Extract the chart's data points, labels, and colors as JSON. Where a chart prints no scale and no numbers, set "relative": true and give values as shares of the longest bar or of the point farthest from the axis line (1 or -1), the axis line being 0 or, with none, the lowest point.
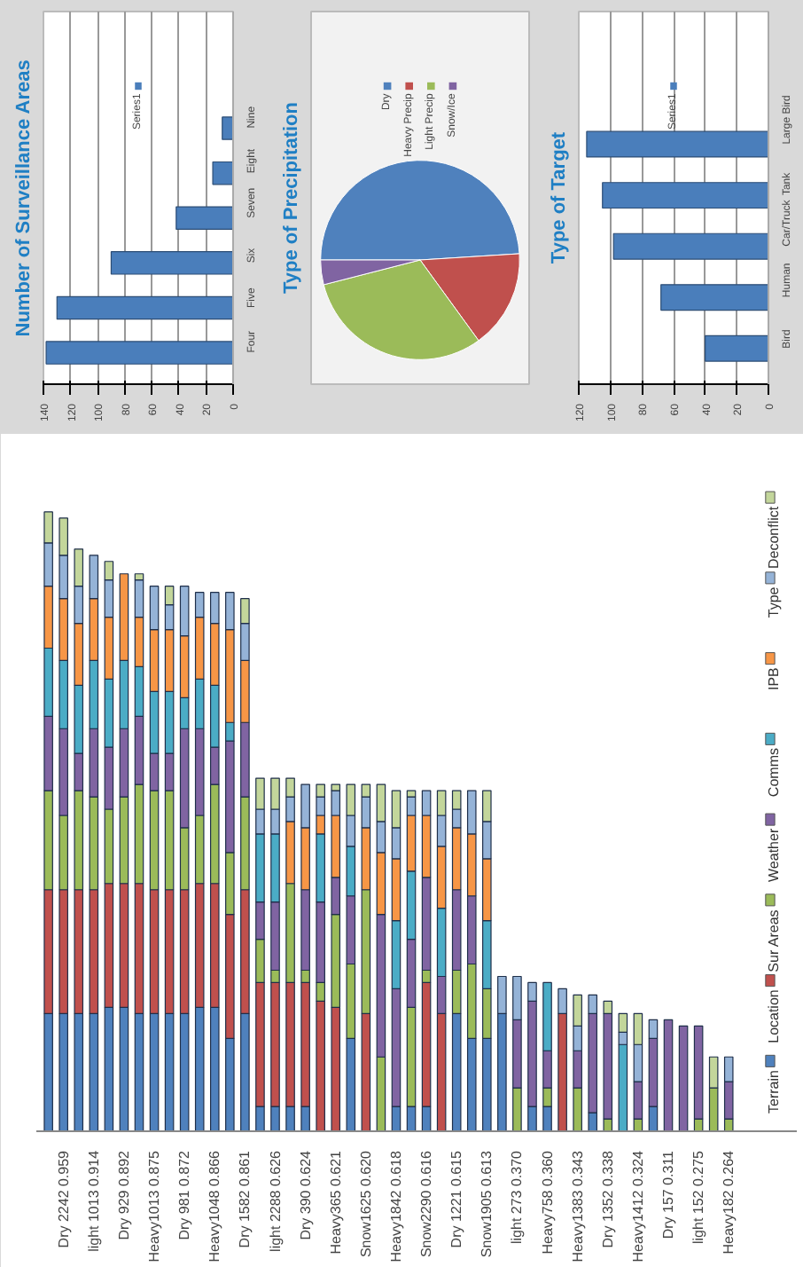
{
  "chart_data": [
    {
      "type": "bar",
      "orientation": "horizontal",
      "title": "Number of Surveillance Areas",
      "categories": [
        "Nine",
        "Eight",
        "Seven",
        "Six",
        "Five",
        "Four"
      ],
      "series": [
        {
          "name": "Series1",
          "color": "#4a7ebb",
          "values": [
            8,
            15,
            42,
            90,
            130,
            138
          ]
        }
      ],
      "xlim": [
        140,
        0
      ],
      "xticks": [
        0,
        20,
        40,
        60,
        80,
        100,
        120,
        140
      ],
      "grid": "x",
      "legend": "top"
    },
    {
      "type": "pie",
      "title": "Type of Precipitation",
      "categories": [
        "Dry",
        "Heavy Precip",
        "Light Precip",
        "Snow/Ice"
      ],
      "values": [
        49,
        16,
        31,
        4
      ],
      "colors": [
        "#4f81bd",
        "#c0504d",
        "#9bbb59",
        "#8064a2"
      ],
      "legend": "top"
    },
    {
      "type": "bar",
      "orientation": "horizontal",
      "title": "Type of Target",
      "categories": [
        "Large Bird",
        "Tank",
        "Car/Truck",
        "Human",
        "Bird"
      ],
      "series": [
        {
          "name": "Series1",
          "color": "#4a7ebb",
          "values": [
            115,
            105,
            98,
            68,
            40
          ]
        }
      ],
      "xlim": [
        120,
        0
      ],
      "xticks": [
        0,
        20,
        40,
        60,
        80,
        100,
        120
      ],
      "grid": "x",
      "legend": "top"
    },
    {
      "type": "bar",
      "stacked": true,
      "relative": true,
      "legend": "right",
      "categories": [
        null,
        "Dry 2242 0.959",
        null,
        "light 1013 0.914",
        null,
        "Dry 929 0.892",
        null,
        "Heavy1013 0.875",
        null,
        "Dry 981 0.872",
        null,
        "Heavy1048 0.866",
        null,
        "Dry 1582 0.861",
        null,
        "light 2288 0.626",
        null,
        "Dry 390 0.624",
        null,
        "Heavy365 0.621",
        null,
        "Snow1625 0.620",
        null,
        "Heavy1842 0.618",
        null,
        "Snow2290 0.616",
        null,
        "Dry 1221 0.615",
        null,
        "Snow1905 0.613",
        null,
        "light 273 0.370",
        null,
        "Heavy758 0.360",
        null,
        "Heavy1383 0.343",
        null,
        "Dry 1352 0.338",
        null,
        "Heavy1412 0.324",
        null,
        "Dry 157 0.311",
        null,
        "light 152 0.275",
        null,
        "Heavy182 0.264"
      ],
      "series": [
        {
          "name": "Terrain",
          "color": "#4f81bd",
          "values": [
            0.19,
            0.19,
            0.19,
            0.19,
            0.2,
            0.2,
            0.19,
            0.19,
            0.19,
            0.19,
            0.2,
            0.2,
            0.15,
            0.19,
            0.04,
            0.04,
            0.04,
            0.04,
            null,
            null,
            0.15,
            null,
            null,
            0.04,
            0.04,
            0.04,
            null,
            0.19,
            0.15,
            0.15,
            0.19,
            null,
            0.04,
            0.04,
            null,
            null,
            0.03,
            null,
            null,
            null,
            0.04,
            null,
            null,
            null,
            null,
            null
          ]
        },
        {
          "name": "Location",
          "color": "#c0504d",
          "values": [
            0.2,
            0.2,
            0.2,
            0.2,
            0.2,
            0.2,
            0.21,
            0.2,
            0.2,
            0.2,
            0.2,
            0.2,
            0.2,
            0.2,
            0.2,
            0.2,
            0.2,
            0.2,
            0.21,
            0.2,
            null,
            0.19,
            null,
            null,
            null,
            0.2,
            0.19,
            null,
            null,
            null,
            null,
            null,
            null,
            null,
            0.19,
            null,
            null,
            null,
            null,
            null,
            null,
            null,
            null,
            null,
            null,
            null
          ]
        },
        {
          "name": "Sur Areas",
          "color": "#9bbb59",
          "values": [
            0.16,
            0.12,
            0.16,
            0.15,
            0.12,
            0.14,
            0.16,
            0.16,
            0.16,
            0.1,
            0.11,
            0.16,
            0.1,
            0.15,
            0.07,
            0.02,
            0.16,
            0.02,
            0.03,
            0.15,
            0.12,
            0.2,
            0.12,
            null,
            0.16,
            0.02,
            null,
            0.07,
            0.12,
            0.08,
            null,
            0.07,
            null,
            0.03,
            null,
            0.07,
            null,
            0.02,
            null,
            0.02,
            null,
            null,
            null,
            0.02,
            0.07,
            0.02
          ]
        },
        {
          "name": "Weather",
          "color": "#8064a2",
          "values": [
            0.12,
            0.14,
            0.06,
            0.11,
            0.1,
            0.11,
            0.11,
            0.06,
            0.06,
            0.16,
            0.14,
            0.06,
            0.18,
            0.12,
            0.06,
            0.11,
            null,
            0.13,
            0.13,
            0.06,
            0.11,
            null,
            0.23,
            0.19,
            0.11,
            0.15,
            0.06,
            0.13,
            0.11,
            null,
            null,
            0.11,
            0.17,
            0.06,
            null,
            0.06,
            0.16,
            0.17,
            null,
            0.06,
            0.11,
            0.18,
            0.17,
            0.15,
            null,
            0.06
          ]
        },
        {
          "name": "Comms",
          "color": "#4bacc6",
          "values": [
            0.11,
            0.11,
            0.11,
            0.11,
            0.11,
            0.11,
            0.08,
            0.1,
            0.1,
            0.05,
            0.08,
            0.1,
            0.03,
            null,
            0.11,
            0.11,
            null,
            null,
            0.11,
            null,
            0.08,
            null,
            null,
            0.11,
            0.11,
            null,
            0.11,
            null,
            null,
            0.11,
            null,
            null,
            null,
            0.11,
            null,
            null,
            null,
            null,
            0.14,
            null,
            null,
            null,
            null,
            null,
            null,
            null
          ]
        },
        {
          "name": "IPB",
          "color": "#f79646",
          "values": [
            0.1,
            0.1,
            0.1,
            0.1,
            0.1,
            0.14,
            0.08,
            0.1,
            0.1,
            0.1,
            0.1,
            0.1,
            0.15,
            0.1,
            null,
            null,
            0.1,
            0.1,
            0.03,
            0.1,
            null,
            0.1,
            0.1,
            0.1,
            0.09,
            0.1,
            0.1,
            0.1,
            0.1,
            0.1,
            null,
            null,
            null,
            null,
            null,
            null,
            null,
            null,
            null,
            null,
            null,
            null,
            null,
            null,
            null,
            null
          ]
        },
        {
          "name": "Type",
          "color": "#95b3d7",
          "values": [
            0.07,
            0.07,
            0.06,
            0.07,
            0.06,
            null,
            0.06,
            0.07,
            0.04,
            0.08,
            0.04,
            0.05,
            0.06,
            0.06,
            0.04,
            0.04,
            0.04,
            0.07,
            0.03,
            0.04,
            0.05,
            0.05,
            0.05,
            0.05,
            0.03,
            0.04,
            0.05,
            0.03,
            0.07,
            0.06,
            0.06,
            0.07,
            0.03,
            null,
            0.04,
            0.04,
            0.03,
            null,
            0.02,
            0.06,
            0.03,
            null,
            null,
            null,
            null,
            0.04
          ]
        },
        {
          "name": "Deconflict",
          "color": "#c3d69b",
          "values": [
            0.05,
            0.06,
            0.06,
            null,
            0.03,
            null,
            0.01,
            null,
            0.03,
            null,
            null,
            null,
            null,
            0.04,
            0.05,
            0.05,
            0.03,
            null,
            0.02,
            0.01,
            0.05,
            0.02,
            0.06,
            0.06,
            0.01,
            null,
            0.04,
            0.03,
            null,
            0.05,
            null,
            null,
            null,
            null,
            null,
            0.05,
            null,
            0.02,
            0.03,
            0.05,
            null,
            null,
            null,
            null,
            0.05,
            null
          ]
        }
      ]
    }
  ]
}
